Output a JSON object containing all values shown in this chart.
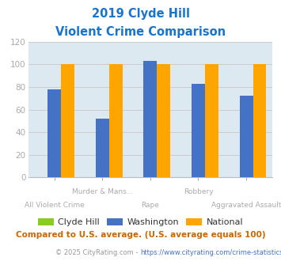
{
  "title_line1": "2019 Clyde Hill",
  "title_line2": "Violent Crime Comparison",
  "title_color": "#1874CD",
  "categories": [
    "All Violent Crime",
    "Murder & Mans...",
    "Rape",
    "Robbery",
    "Aggravated Assault"
  ],
  "label_top": [
    "",
    "Murder & Mans...",
    "",
    "Robbery",
    ""
  ],
  "label_bot": [
    "All Violent Crime",
    "",
    "Rape",
    "",
    "Aggravated Assault"
  ],
  "series": [
    {
      "name": "Clyde Hill",
      "color": "#88CC22",
      "values": [
        0,
        0,
        0,
        0,
        0
      ]
    },
    {
      "name": "Washington",
      "color": "#4472C4",
      "values": [
        78,
        52,
        103,
        83,
        72
      ]
    },
    {
      "name": "National",
      "color": "#FFA500",
      "values": [
        100,
        100,
        100,
        100,
        100
      ]
    }
  ],
  "ylim": [
    0,
    120
  ],
  "yticks": [
    0,
    20,
    40,
    60,
    80,
    100,
    120
  ],
  "grid_color": "#cccccc",
  "bg_color": "#dce9f0",
  "footnote1": "Compared to U.S. average. (U.S. average equals 100)",
  "footnote1_color": "#CC6600",
  "footnote2_prefix": "© 2025 CityRating.com - ",
  "footnote2_url": "https://www.cityrating.com/crime-statistics/",
  "footnote2_color": "#999999",
  "footnote2_url_color": "#4472C4",
  "tick_label_color": "#aaaaaa",
  "bar_width": 0.28
}
